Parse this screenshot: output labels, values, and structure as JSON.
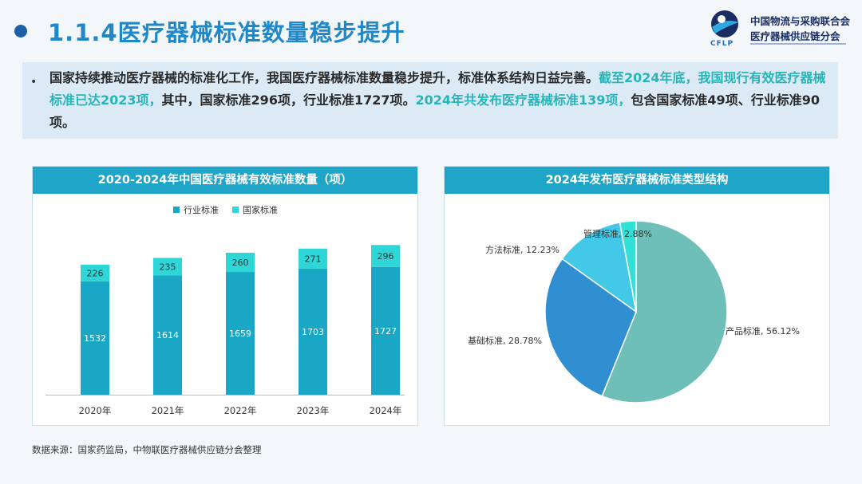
{
  "header": {
    "title": "1.1.4医疗器械标准数量稳步提升",
    "logo_line1": "中国物流与采购联合会",
    "logo_line2": "医疗器械供应链分会",
    "logo_abbr": "CFLP"
  },
  "intro": {
    "bullet": "•",
    "part1": "国家持续推动医疗器械的标准化工作，我国医疗器械标准数量稳步提升，标准体系结构日益完善。",
    "part2": "截至2024年底，我国现行有效医疗器械标准已达2023项，",
    "part3": "其中，国家标准296项，行业标准1727项。",
    "part4": "2024年共发布医疗器械标准139项，",
    "part5": "包含国家标准49项、行业标准90项。"
  },
  "colors": {
    "industry": "#1aa6c5",
    "national": "#2fd6d8",
    "pie_product": "#6dbfb7",
    "pie_basic": "#2f8fd0",
    "pie_method": "#43c8e8",
    "pie_management": "#31e0d6",
    "header_bg": "#1ea5c7",
    "title": "#1f88c9"
  },
  "chart_data": [
    {
      "type": "bar",
      "stacked": true,
      "title": "2020-2024年中国医疗器械有效标准数量（项）",
      "categories": [
        "2020年",
        "2021年",
        "2022年",
        "2023年",
        "2024年"
      ],
      "series": [
        {
          "name": "行业标准",
          "values": [
            1532,
            1614,
            1659,
            1703,
            1727
          ]
        },
        {
          "name": "国家标准",
          "values": [
            226,
            235,
            260,
            271,
            296
          ]
        }
      ],
      "legend": "top-left",
      "grid": false
    },
    {
      "type": "pie",
      "title": "2024年发布医疗器械标准类型结构",
      "slices": [
        {
          "label": "产品标准",
          "value": 56.12
        },
        {
          "label": "基础标准",
          "value": 28.78
        },
        {
          "label": "方法标准",
          "value": 12.23
        },
        {
          "label": "管理标准",
          "value": 2.88
        }
      ]
    }
  ],
  "footer": {
    "source": "数据来源：国家药监局，中物联医疗器械供应链分会整理"
  }
}
